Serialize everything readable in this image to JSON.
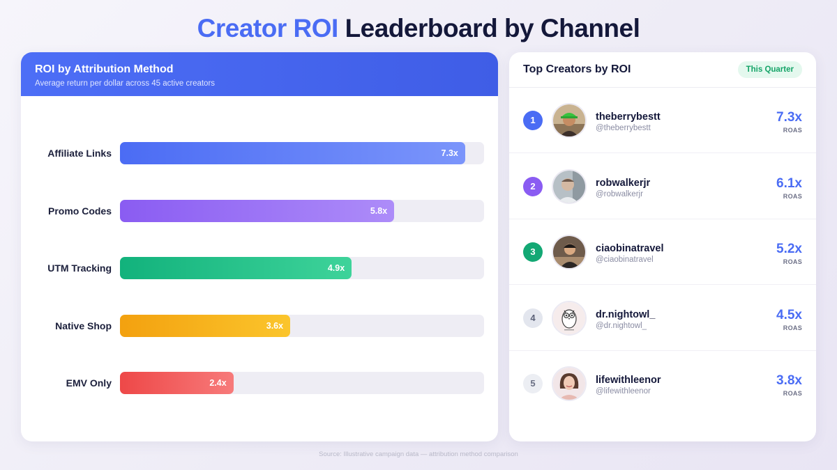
{
  "title": {
    "accent": "Creator ROI",
    "rest": "Leaderboard by Channel"
  },
  "chart_data": {
    "type": "bar",
    "orientation": "horizontal",
    "title": "ROI by Attribution Method",
    "subtitle": "Average return per dollar across 45 active creators",
    "categories": [
      "Affiliate Links",
      "Promo Codes",
      "UTM Tracking",
      "Native Shop",
      "EMV Only"
    ],
    "values": [
      7.3,
      5.8,
      4.9,
      3.6,
      2.4
    ],
    "value_labels": [
      "7.3x",
      "5.8x",
      "4.9x",
      "3.6x",
      "2.4x"
    ],
    "xlim": [
      0,
      7.7
    ],
    "grid": false,
    "colors": [
      [
        "#4b6cf4",
        "#7b95fb"
      ],
      [
        "#8a5cf2",
        "#ad8cf9"
      ],
      [
        "#12b27c",
        "#3ed39a"
      ],
      [
        "#f3a10f",
        "#fbc52c"
      ],
      [
        "#ee4848",
        "#f77a7a"
      ]
    ]
  },
  "leaderboard": {
    "title": "Top Creators by ROI",
    "badge": "This Quarter",
    "unit_label": "ROAS",
    "items": [
      {
        "rank": "1",
        "name": "theberrybestt",
        "handle": "@theberrybestt",
        "value": "7.3x",
        "rank_bg": "#4a6cf4",
        "rank_fg": "#ffffff",
        "avatar_icon": "green-cap-person-icon"
      },
      {
        "rank": "2",
        "name": "robwalkerjr",
        "handle": "@robwalkerjr",
        "value": "6.1x",
        "rank_bg": "#8a5cf2",
        "rank_fg": "#ffffff",
        "avatar_icon": "person-selfie-icon"
      },
      {
        "rank": "3",
        "name": "ciaobinatravel",
        "handle": "@ciaobinatravel",
        "value": "5.2x",
        "rank_bg": "#13a874",
        "rank_fg": "#ffffff",
        "avatar_icon": "traveler-icon"
      },
      {
        "rank": "4",
        "name": "dr.nightowl_",
        "handle": "@dr.nightowl_",
        "value": "4.5x",
        "rank_bg": "#e3e6ee",
        "rank_fg": "#5b6178",
        "avatar_icon": "owl-sketch-icon"
      },
      {
        "rank": "5",
        "name": "lifewithleenor",
        "handle": "@lifewithleenor",
        "value": "3.8x",
        "rank_bg": "#eceef3",
        "rank_fg": "#6a6f84",
        "avatar_icon": "smiling-woman-icon"
      }
    ]
  },
  "source": "Source: Illustrative campaign data — attribution method comparison"
}
